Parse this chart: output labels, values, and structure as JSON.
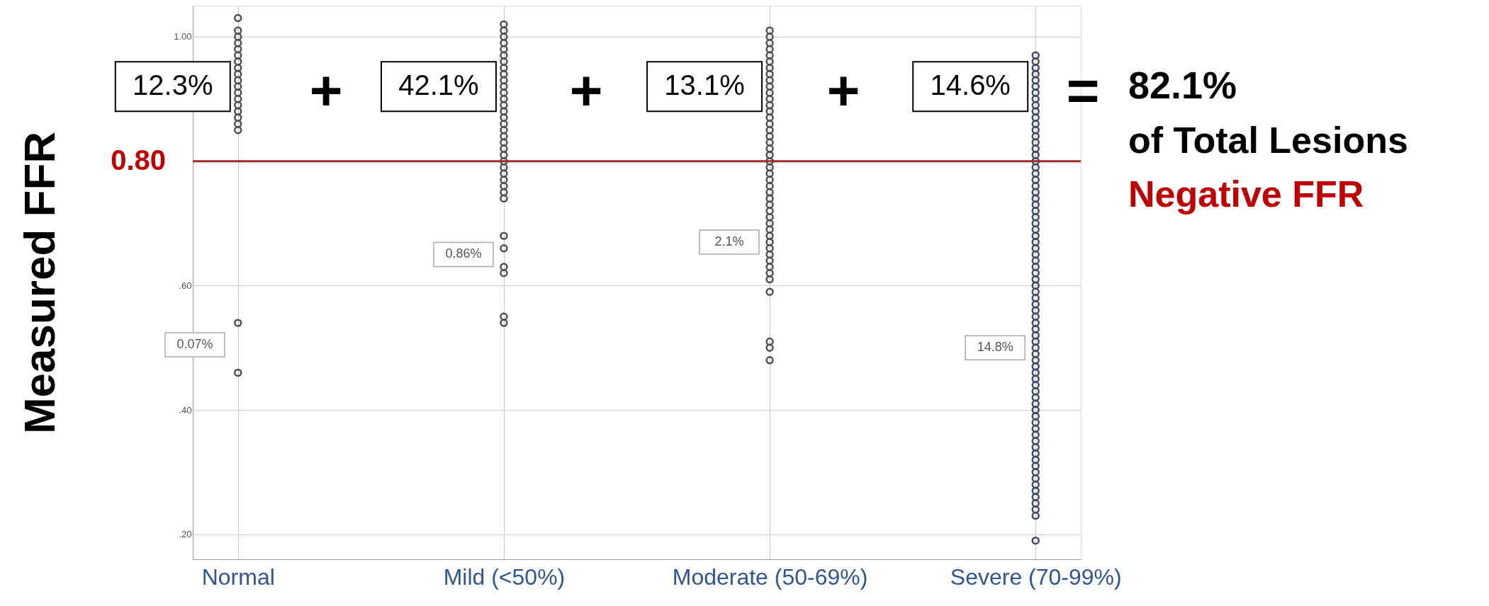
{
  "chart_data": {
    "type": "scatter",
    "ylabel": "Measured FFR",
    "categories": [
      "Normal",
      "Mild (<50%)",
      "Moderate (50-69%)",
      "Severe (70-99%)"
    ],
    "series": [
      {
        "color": "#505050",
        "x": [
          "Normal",
          "Normal",
          "Normal",
          "Normal",
          "Normal",
          "Normal",
          "Normal",
          "Normal",
          "Normal",
          "Normal",
          "Normal",
          "Normal",
          "Normal",
          "Normal",
          "Normal",
          "Normal",
          "Normal",
          "Normal",
          "Normal",
          "Normal"
        ],
        "values": [
          1.03,
          1.01,
          1.0,
          0.99,
          0.98,
          0.97,
          0.96,
          0.95,
          0.94,
          0.93,
          0.92,
          0.91,
          0.9,
          0.89,
          0.88,
          0.87,
          0.86,
          0.85,
          0.54,
          0.46
        ]
      },
      {
        "color": "#505050",
        "x": [
          "Mild (<50%)",
          "Mild (<50%)",
          "Mild (<50%)",
          "Mild (<50%)",
          "Mild (<50%)",
          "Mild (<50%)",
          "Mild (<50%)",
          "Mild (<50%)",
          "Mild (<50%)",
          "Mild (<50%)",
          "Mild (<50%)",
          "Mild (<50%)",
          "Mild (<50%)",
          "Mild (<50%)",
          "Mild (<50%)",
          "Mild (<50%)",
          "Mild (<50%)",
          "Mild (<50%)",
          "Mild (<50%)",
          "Mild (<50%)",
          "Mild (<50%)",
          "Mild (<50%)",
          "Mild (<50%)",
          "Mild (<50%)",
          "Mild (<50%)",
          "Mild (<50%)",
          "Mild (<50%)",
          "Mild (<50%)",
          "Mild (<50%)",
          "Mild (<50%)",
          "Mild (<50%)",
          "Mild (<50%)",
          "Mild (<50%)",
          "Mild (<50%)",
          "Mild (<50%)"
        ],
        "values": [
          1.02,
          1.01,
          1.0,
          0.99,
          0.98,
          0.97,
          0.96,
          0.95,
          0.94,
          0.93,
          0.92,
          0.91,
          0.9,
          0.89,
          0.88,
          0.87,
          0.86,
          0.85,
          0.84,
          0.83,
          0.82,
          0.81,
          0.8,
          0.79,
          0.78,
          0.77,
          0.76,
          0.75,
          0.74,
          0.68,
          0.66,
          0.63,
          0.62,
          0.55,
          0.54
        ]
      },
      {
        "color": "#505050",
        "x": [
          "Moderate (50-69%)",
          "Moderate (50-69%)",
          "Moderate (50-69%)",
          "Moderate (50-69%)",
          "Moderate (50-69%)",
          "Moderate (50-69%)",
          "Moderate (50-69%)",
          "Moderate (50-69%)",
          "Moderate (50-69%)",
          "Moderate (50-69%)",
          "Moderate (50-69%)",
          "Moderate (50-69%)",
          "Moderate (50-69%)",
          "Moderate (50-69%)",
          "Moderate (50-69%)",
          "Moderate (50-69%)",
          "Moderate (50-69%)",
          "Moderate (50-69%)",
          "Moderate (50-69%)",
          "Moderate (50-69%)",
          "Moderate (50-69%)",
          "Moderate (50-69%)",
          "Moderate (50-69%)",
          "Moderate (50-69%)",
          "Moderate (50-69%)",
          "Moderate (50-69%)",
          "Moderate (50-69%)",
          "Moderate (50-69%)",
          "Moderate (50-69%)",
          "Moderate (50-69%)",
          "Moderate (50-69%)",
          "Moderate (50-69%)",
          "Moderate (50-69%)",
          "Moderate (50-69%)",
          "Moderate (50-69%)",
          "Moderate (50-69%)",
          "Moderate (50-69%)",
          "Moderate (50-69%)",
          "Moderate (50-69%)",
          "Moderate (50-69%)",
          "Moderate (50-69%)",
          "Moderate (50-69%)",
          "Moderate (50-69%)",
          "Moderate (50-69%)",
          "Moderate (50-69%)"
        ],
        "values": [
          1.01,
          1.0,
          0.99,
          0.98,
          0.97,
          0.96,
          0.95,
          0.94,
          0.93,
          0.92,
          0.91,
          0.9,
          0.89,
          0.88,
          0.87,
          0.86,
          0.85,
          0.84,
          0.83,
          0.82,
          0.81,
          0.8,
          0.79,
          0.78,
          0.77,
          0.76,
          0.75,
          0.74,
          0.73,
          0.72,
          0.71,
          0.7,
          0.69,
          0.68,
          0.67,
          0.66,
          0.65,
          0.64,
          0.63,
          0.62,
          0.61,
          0.59,
          0.51,
          0.5,
          0.48
        ]
      },
      {
        "color": "#3b4a6b",
        "x": [
          "Severe (70-99%)",
          "Severe (70-99%)",
          "Severe (70-99%)",
          "Severe (70-99%)",
          "Severe (70-99%)",
          "Severe (70-99%)",
          "Severe (70-99%)",
          "Severe (70-99%)",
          "Severe (70-99%)",
          "Severe (70-99%)",
          "Severe (70-99%)",
          "Severe (70-99%)",
          "Severe (70-99%)",
          "Severe (70-99%)",
          "Severe (70-99%)",
          "Severe (70-99%)",
          "Severe (70-99%)",
          "Severe (70-99%)",
          "Severe (70-99%)",
          "Severe (70-99%)",
          "Severe (70-99%)",
          "Severe (70-99%)",
          "Severe (70-99%)",
          "Severe (70-99%)",
          "Severe (70-99%)",
          "Severe (70-99%)",
          "Severe (70-99%)",
          "Severe (70-99%)",
          "Severe (70-99%)",
          "Severe (70-99%)",
          "Severe (70-99%)",
          "Severe (70-99%)",
          "Severe (70-99%)",
          "Severe (70-99%)",
          "Severe (70-99%)",
          "Severe (70-99%)",
          "Severe (70-99%)",
          "Severe (70-99%)",
          "Severe (70-99%)",
          "Severe (70-99%)",
          "Severe (70-99%)",
          "Severe (70-99%)",
          "Severe (70-99%)",
          "Severe (70-99%)",
          "Severe (70-99%)",
          "Severe (70-99%)",
          "Severe (70-99%)",
          "Severe (70-99%)",
          "Severe (70-99%)",
          "Severe (70-99%)",
          "Severe (70-99%)",
          "Severe (70-99%)",
          "Severe (70-99%)",
          "Severe (70-99%)",
          "Severe (70-99%)",
          "Severe (70-99%)",
          "Severe (70-99%)",
          "Severe (70-99%)",
          "Severe (70-99%)",
          "Severe (70-99%)",
          "Severe (70-99%)",
          "Severe (70-99%)",
          "Severe (70-99%)",
          "Severe (70-99%)",
          "Severe (70-99%)",
          "Severe (70-99%)",
          "Severe (70-99%)",
          "Severe (70-99%)",
          "Severe (70-99%)",
          "Severe (70-99%)",
          "Severe (70-99%)",
          "Severe (70-99%)",
          "Severe (70-99%)",
          "Severe (70-99%)",
          "Severe (70-99%)",
          "Severe (70-99%)"
        ],
        "values": [
          0.97,
          0.96,
          0.95,
          0.94,
          0.93,
          0.92,
          0.91,
          0.9,
          0.89,
          0.88,
          0.87,
          0.86,
          0.85,
          0.84,
          0.83,
          0.82,
          0.81,
          0.8,
          0.79,
          0.78,
          0.77,
          0.76,
          0.75,
          0.74,
          0.73,
          0.72,
          0.71,
          0.7,
          0.69,
          0.68,
          0.67,
          0.66,
          0.65,
          0.64,
          0.63,
          0.62,
          0.61,
          0.6,
          0.59,
          0.58,
          0.57,
          0.56,
          0.55,
          0.54,
          0.53,
          0.52,
          0.51,
          0.5,
          0.49,
          0.48,
          0.47,
          0.46,
          0.45,
          0.44,
          0.43,
          0.42,
          0.41,
          0.4,
          0.39,
          0.38,
          0.37,
          0.36,
          0.35,
          0.34,
          0.33,
          0.32,
          0.31,
          0.3,
          0.29,
          0.28,
          0.27,
          0.26,
          0.25,
          0.24,
          0.23,
          0.19
        ]
      }
    ],
    "ylim": [
      0.16,
      1.05
    ],
    "yticks": [
      {
        "value": 1.0,
        "label": "1.00"
      },
      {
        "value": 0.6,
        "label": ".60"
      },
      {
        "value": 0.4,
        "label": ".40"
      },
      {
        "value": 0.2,
        "label": ".20"
      }
    ],
    "grid": true,
    "marker": "circle",
    "ref_lines": [
      {
        "axis": "y",
        "value": 0.8,
        "label": "0.80",
        "color": "#9e2a2b"
      }
    ],
    "annotations": [
      {
        "text": "12.3%",
        "x": "Normal",
        "y": 0.92
      },
      {
        "text": "42.1%",
        "x": "Mild (<50%)",
        "y": 0.92
      },
      {
        "text": "13.1%",
        "x": "Moderate (50-69%)",
        "y": 0.92
      },
      {
        "text": "14.6%",
        "x": "Severe (70-99%)",
        "y": 0.92
      },
      {
        "text": "0.86%",
        "x": "Mild (<50%)",
        "y": 0.65
      },
      {
        "text": "2.1%",
        "x": "Moderate (50-69%)",
        "y": 0.67
      },
      {
        "text": "14.8%",
        "x": "Severe (70-99%)",
        "y": 0.5
      },
      "+",
      "+",
      "+",
      "=",
      "82.1%",
      "of Total Lesions",
      "Negative FFR",
      "0.07%"
    ]
  }
}
